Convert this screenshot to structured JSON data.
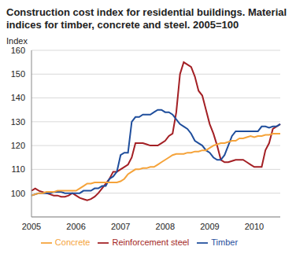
{
  "chart_data": {
    "type": "line",
    "title": "Construction cost index for residential buildings. Material indices for timber, concrete and steel. 2005=100",
    "y_label": "Index",
    "categories": [
      "2005",
      null,
      null,
      null,
      null,
      null,
      null,
      null,
      null,
      null,
      null,
      null,
      "2006",
      null,
      null,
      null,
      null,
      null,
      null,
      null,
      null,
      null,
      null,
      null,
      "2007",
      null,
      null,
      null,
      null,
      null,
      null,
      null,
      null,
      null,
      null,
      null,
      "2008",
      null,
      null,
      null,
      null,
      null,
      null,
      null,
      null,
      null,
      null,
      null,
      "2009",
      null,
      null,
      null,
      null,
      null,
      null,
      null,
      null,
      null,
      null,
      null,
      "2010",
      null,
      null,
      null,
      null,
      null,
      null,
      null
    ],
    "series": [
      {
        "name": "Reinforcement steel",
        "color": "#a31f24",
        "values": [
          101,
          102,
          101,
          100.5,
          100,
          99.5,
          99,
          99,
          98.5,
          98.5,
          99,
          100,
          99,
          98,
          97.5,
          97,
          97.5,
          98.5,
          100,
          102,
          104,
          106,
          109,
          109,
          110,
          111,
          112,
          115,
          121,
          121,
          121,
          120.5,
          120,
          120,
          120,
          121,
          122,
          124,
          125,
          134,
          150,
          155,
          154,
          153,
          149,
          143,
          141,
          135,
          129,
          125,
          120,
          114,
          113,
          113,
          113.5,
          114,
          114,
          114,
          113,
          112,
          111,
          111,
          111,
          118,
          121,
          127,
          128,
          129
        ]
      },
      {
        "name": "Timber",
        "color": "#1f4e9c",
        "values": [
          99,
          99.5,
          100,
          100,
          100,
          100,
          100.5,
          100.5,
          100.5,
          100,
          100,
          100,
          100,
          100,
          101,
          101,
          101,
          102,
          102,
          103,
          103,
          106,
          107,
          109,
          116,
          117,
          117,
          130,
          132,
          132,
          133,
          133,
          133,
          134,
          135,
          135,
          134,
          134,
          133,
          131,
          129,
          128,
          127,
          125,
          122,
          121,
          120,
          118,
          117,
          115,
          114,
          114,
          116,
          120,
          124,
          126,
          126,
          126,
          126,
          126,
          126,
          126,
          128,
          128,
          127.5,
          128,
          128,
          129
        ]
      },
      {
        "name": "Concrete",
        "color": "#f5a33a",
        "values": [
          99,
          99.5,
          100,
          100,
          100.5,
          100.5,
          100.5,
          101,
          101,
          101,
          101,
          101,
          101,
          102,
          103,
          104,
          104,
          104.5,
          104.5,
          104.5,
          104.5,
          104.5,
          104.5,
          104.5,
          105,
          106,
          108,
          109,
          110,
          110,
          110.5,
          110.5,
          111,
          111,
          112,
          113,
          114,
          115,
          116,
          116.5,
          116.5,
          116.5,
          117,
          117,
          117.5,
          117.5,
          118,
          118,
          119,
          120,
          120.5,
          121,
          121,
          121.5,
          122,
          122,
          123,
          123,
          123.5,
          124,
          123.5,
          124,
          124,
          124.5,
          124.5,
          125,
          125,
          125
        ]
      }
    ],
    "ylim": [
      90,
      160
    ],
    "yticks": [
      100,
      110,
      120,
      130,
      140,
      150,
      160
    ],
    "grid": true,
    "legend": "bottom"
  }
}
